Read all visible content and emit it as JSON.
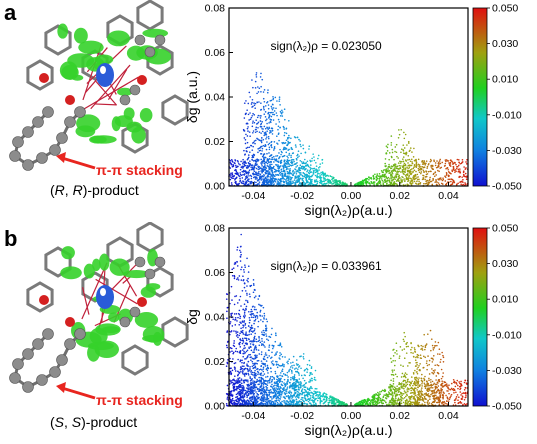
{
  "panels": [
    {
      "letter": "a",
      "product_label": "(R, R)-product",
      "stacking_label": "π-π stacking",
      "annotation": "sign(λ₂)ρ = 0.023050"
    },
    {
      "letter": "b",
      "product_label": "(S, S)-product",
      "stacking_label": "π-π stacking",
      "annotation": "sign(λ₂)ρ = 0.033961"
    }
  ],
  "colors": {
    "accent_red": "#e8251f",
    "atom_gray": "#8c8c8c",
    "atom_red": "#d42020",
    "surface_green": "#35d12a"
  },
  "chart_data": [
    {
      "type": "scatter",
      "title": "",
      "xlabel": "sign(λ₂)ρ(a.u.)",
      "ylabel": "δg (a.u.)",
      "xlim": [
        -0.05,
        0.048
      ],
      "ylim": [
        0.0,
        0.08
      ],
      "xticks": [
        "-0.04",
        "-0.02",
        "0.00",
        "0.02",
        "0.04"
      ],
      "yticks": [
        "0.00",
        "0.02",
        "0.04",
        "0.06",
        "0.08"
      ],
      "colorbar": {
        "ticks": [
          "0.050",
          "0.030",
          "0.010",
          "-0.010",
          "-0.030",
          "-0.050"
        ],
        "range": [
          -0.05,
          0.05
        ]
      },
      "spikes": [
        {
          "x": -0.038,
          "peak": 0.056
        },
        {
          "x": -0.031,
          "peak": 0.045
        },
        {
          "x": -0.024,
          "peak": 0.025
        },
        {
          "x": -0.017,
          "peak": 0.018
        },
        {
          "x": 0.02,
          "peak": 0.028
        }
      ],
      "annotation_value": 0.02305
    },
    {
      "type": "scatter",
      "title": "",
      "xlabel": "sign(λ₂)ρ(a.u.)",
      "ylabel": "δg",
      "xlim": [
        -0.05,
        0.048
      ],
      "ylim": [
        0.0,
        0.08
      ],
      "xticks": [
        "-0.04",
        "-0.02",
        "0.00",
        "0.02",
        "0.04"
      ],
      "yticks": [
        "0.00",
        "0.02",
        "0.04",
        "0.06",
        "0.08"
      ],
      "colorbar": {
        "ticks": [
          "0.050",
          "0.030",
          "0.010",
          "-0.010",
          "-0.030",
          "-0.050"
        ],
        "range": [
          -0.05,
          0.05
        ]
      },
      "spikes": [
        {
          "x": -0.045,
          "peak": 0.078
        },
        {
          "x": -0.04,
          "peak": 0.058
        },
        {
          "x": -0.034,
          "peak": 0.04
        },
        {
          "x": -0.027,
          "peak": 0.028
        },
        {
          "x": -0.02,
          "peak": 0.025
        },
        {
          "x": 0.022,
          "peak": 0.035
        },
        {
          "x": 0.032,
          "peak": 0.038
        }
      ],
      "annotation_value": 0.033961
    }
  ]
}
